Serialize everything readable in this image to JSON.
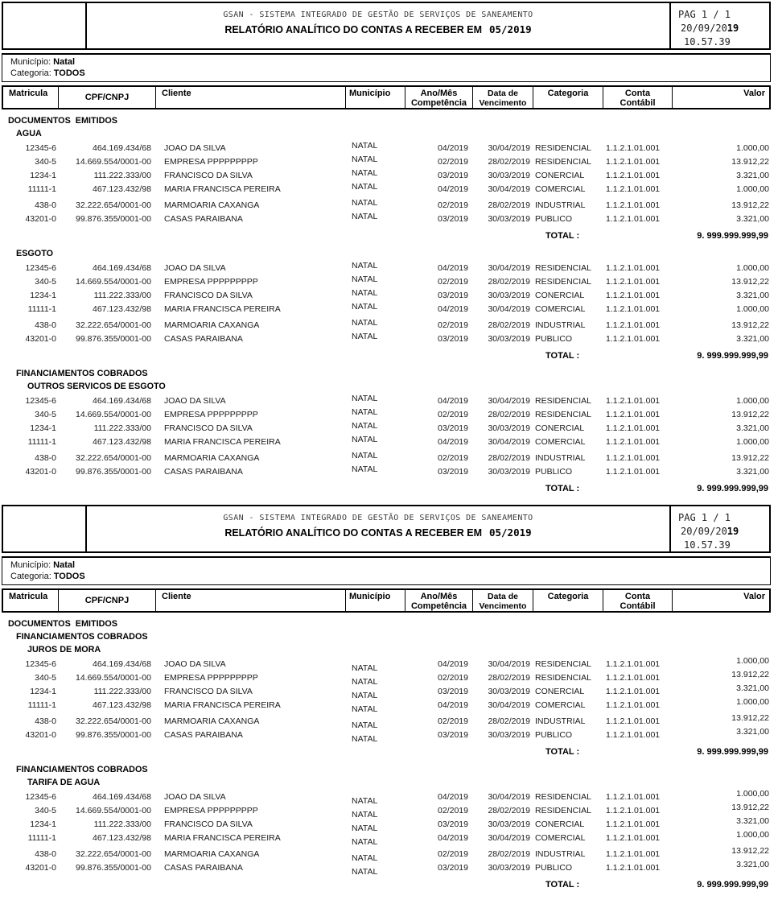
{
  "report": {
    "org_line": "GSAN - SISTEMA INTEGRADO DE GESTÃO DE SERVIÇOS DE SANEAMENTO",
    "title": "RELATÓRIO ANALÍTICO DO CONTAS A RECEBER EM",
    "period": "05/2019",
    "page_label": "PAG 1 / 1",
    "date_prefix": "20/09/20",
    "date_suffix": "19",
    "time": "10.57.39",
    "municipio_label": "Município:",
    "municipio_value": "Natal",
    "categoria_label": "Categoria:",
    "categoria_value": "TODOS",
    "total_label": "TOTAL :",
    "columns": [
      {
        "line1": "Matricula",
        "line2": ""
      },
      {
        "line1": "CPF/CNPJ",
        "line2": ""
      },
      {
        "line1": "Cliente",
        "line2": ""
      },
      {
        "line1": "Município",
        "line2": ""
      },
      {
        "line1": "Ano/Mês",
        "line2": "Competência"
      },
      {
        "line1": "Data de",
        "line2": "Vencimento"
      },
      {
        "line1": "Categoria",
        "line2": ""
      },
      {
        "line1": "Conta",
        "line2": "Contábil"
      },
      {
        "line1": "Valor",
        "line2": ""
      }
    ]
  },
  "detail_rows": [
    {
      "matricula": "12345-6",
      "cpf_cnpj": "464.169.434/68",
      "cliente": "JOAO DA SILVA",
      "municipio": "NATAL",
      "ano_mes": "04/2019",
      "vencimento": "30/04/2019",
      "categoria": "RESIDENCIAL",
      "conta": "1.1.2.1.01.001",
      "valor": "1.000,00"
    },
    {
      "matricula": "340-5",
      "cpf_cnpj": "14.669.554/0001-00",
      "cliente": "EMPRESA PPPPPPPPP",
      "municipio": "NATAL",
      "ano_mes": "02/2019",
      "vencimento": "28/02/2019",
      "categoria": "RESIDENCIAL",
      "conta": "1.1.2.1.01.001",
      "valor": "13.912,22"
    },
    {
      "matricula": "1234-1",
      "cpf_cnpj": "111.222.333/00",
      "cliente": "FRANCISCO DA SILVA",
      "municipio": "NATAL",
      "ano_mes": "03/2019",
      "vencimento": "30/03/2019",
      "categoria": "CONERCIAL",
      "conta": "1.1.2.1.01.001",
      "valor": "3.321,00"
    },
    {
      "matricula": "11111-1",
      "cpf_cnpj": "467.123.432/98",
      "cliente": "MARIA FRANCISCA PEREIRA",
      "municipio": "NATAL",
      "ano_mes": "04/2019",
      "vencimento": "30/04/2019",
      "categoria": "COMERCIAL",
      "conta": "1.1.2.1.01.001",
      "valor": "1.000,00"
    },
    {
      "matricula": "438-0",
      "cpf_cnpj": "32.222.654/0001-00",
      "cliente": "MARMOARIA CAXANGA",
      "municipio": "NATAL",
      "ano_mes": "02/2019",
      "vencimento": "28/02/2019",
      "categoria": "INDUSTRIAL",
      "conta": "1.1.2.1.01.001",
      "valor": "13.912,22"
    },
    {
      "matricula": "43201-0",
      "cpf_cnpj": "99.876.355/0001-00",
      "cliente": "CASAS PARAIBANA",
      "municipio": "NATAL",
      "ano_mes": "03/2019",
      "vencimento": "30/03/2019",
      "categoria": "PUBLICO",
      "conta": "1.1.2.1.01.001",
      "valor": "3.321,00"
    }
  ],
  "pages": [
    {
      "name": "page-1",
      "sections": [
        {
          "headers": [
            {
              "level": 0,
              "text": "DOCUMENTOS  EMITIDOS"
            },
            {
              "level": 1,
              "text": "AGUA"
            }
          ],
          "total": "9. 999.999.999,99"
        },
        {
          "headers": [
            {
              "level": 1,
              "text": "ESGOTO"
            }
          ],
          "total": "9. 999.999.999,99"
        },
        {
          "headers": [
            {
              "level": 1,
              "text": "FINANCIAMENTOS COBRADOS"
            },
            {
              "level": 2,
              "text": "OUTROS SERVICOS DE ESGOTO"
            }
          ],
          "total": "9. 999.999.999,99"
        }
      ]
    },
    {
      "name": "page-2",
      "sections": [
        {
          "headers": [
            {
              "level": 0,
              "text": "DOCUMENTOS  EMITIDOS"
            },
            {
              "level": 1,
              "text": "FINANCIAMENTOS COBRADOS"
            },
            {
              "level": 2,
              "text": "JUROS DE MORA"
            }
          ],
          "total": "9. 999.999.999,99"
        },
        {
          "headers": [
            {
              "level": 1,
              "text": "FINANCIAMENTOS COBRADOS"
            },
            {
              "level": 2,
              "text": "TARIFA DE AGUA"
            }
          ],
          "total": "9. 999.999.999,99"
        }
      ]
    }
  ]
}
